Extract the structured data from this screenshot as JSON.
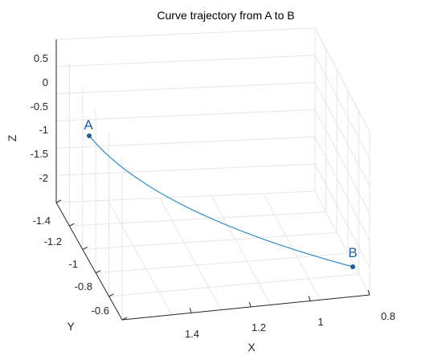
{
  "chart_data": {
    "type": "line3d",
    "title": "Curve trajectory from A to B",
    "xlabel": "X",
    "ylabel": "Y",
    "zlabel": "Z",
    "x_ticks": [
      "1.4",
      "1.2",
      "1",
      "0.8"
    ],
    "y_ticks": [
      "-1.4",
      "-1.2",
      "-1",
      "-0.8",
      "-0.6"
    ],
    "z_ticks": [
      "0.5",
      "0",
      "-0.5",
      "-1",
      "-1.5",
      "-2"
    ],
    "grid": true,
    "colors": {
      "curve": "#2e86c1",
      "point": "#1f5f99",
      "grid": "#e6e6e6",
      "axis": "#262626"
    },
    "points": [
      {
        "name": "A",
        "x": 1.5,
        "y": -1.45,
        "z": -1.1
      },
      {
        "name": "B",
        "x": 0.88,
        "y": -0.8,
        "z": -2.8
      }
    ]
  }
}
